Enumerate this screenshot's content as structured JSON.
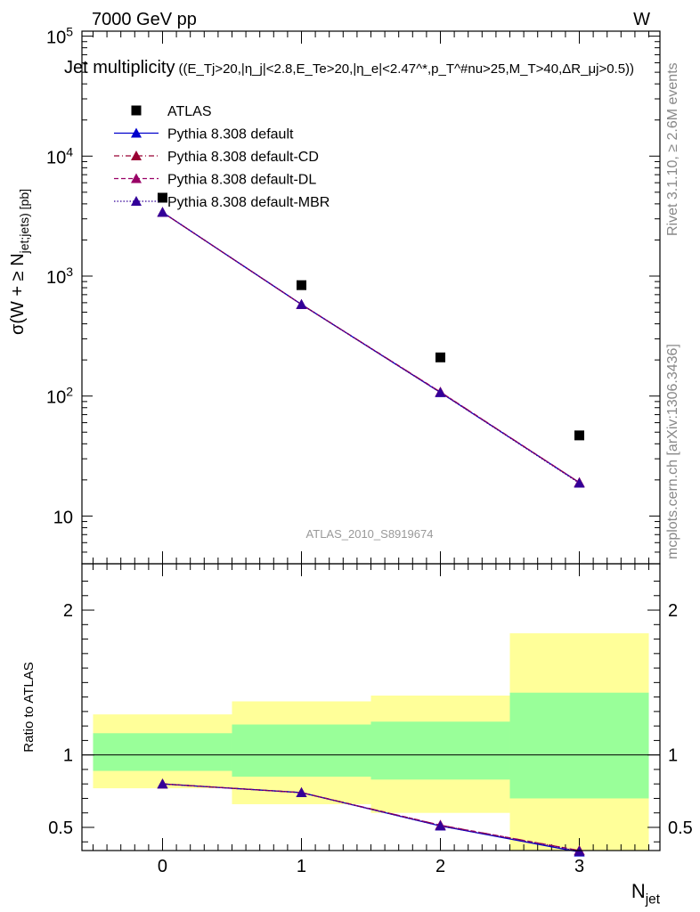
{
  "header": {
    "left": "7000 GeV pp",
    "right": "W"
  },
  "title": {
    "main": "Jet multiplicity",
    "cuts": "((E_Tj>20,|η_j|<2.8,E_Te>20,|η_e|<2.47^*,p_T^#nu>25,M_T>40,ΔR_μj>0.5))"
  },
  "side_labels": {
    "rivet": "Rivet 3.1.10, ≥ 2.6M events",
    "mcplots": "mcplots.cern.ch [arXiv:1306.3436]"
  },
  "analysis_id": "ATLAS_2010_S8919674",
  "colors": {
    "data": "#000000",
    "default": "#0000cc",
    "cd": "#990033",
    "dl": "#990066",
    "mbr": "#330099",
    "band_inner": "#99ff99",
    "band_outer": "#ffff99"
  },
  "chart_data": [
    {
      "type": "line",
      "panel": "main",
      "ylabel": "σ(W + ≥ N_jet;jets) [pb]",
      "yscale": "log",
      "ylim": [
        4,
        110000
      ],
      "xlim": [
        -0.58,
        3.58
      ],
      "y_ticks": [
        {
          "v": 10,
          "label": "10"
        },
        {
          "v": 100,
          "label": "10^2"
        },
        {
          "v": 1000,
          "label": "10^3"
        },
        {
          "v": 10000,
          "label": "10^4"
        },
        {
          "v": 100000,
          "label": "10^5"
        }
      ],
      "x": [
        0,
        1,
        2,
        3
      ],
      "series": [
        {
          "name": "ATLAS",
          "style": "data",
          "values": [
            4500,
            840,
            210,
            47
          ]
        },
        {
          "name": "Pythia 8.308 default",
          "style": "solid",
          "values": [
            3400,
            580,
            107,
            19
          ]
        },
        {
          "name": "Pythia 8.308 default-CD",
          "style": "dashdot",
          "values": [
            3400,
            580,
            108,
            19
          ]
        },
        {
          "name": "Pythia 8.308 default-DL",
          "style": "dashed",
          "values": [
            3400,
            580,
            108,
            19
          ]
        },
        {
          "name": "Pythia 8.308 default-MBR",
          "style": "dotted",
          "values": [
            3400,
            580,
            107,
            18.8
          ]
        }
      ]
    },
    {
      "type": "line",
      "panel": "ratio",
      "ylabel": "Ratio to ATLAS",
      "ylim": [
        0.34,
        2.32
      ],
      "xlim": [
        -0.58,
        3.58
      ],
      "xlabel": "N_jet",
      "x_ticks": [
        "0",
        "1",
        "2",
        "3"
      ],
      "y_ticks": [
        {
          "v": 0.5,
          "label": "0.5"
        },
        {
          "v": 1,
          "label": "1"
        },
        {
          "v": 2,
          "label": "2"
        }
      ],
      "bins": [
        {
          "lo": -0.5,
          "hi": 0.5,
          "inner": [
            0.89,
            1.15
          ],
          "outer": [
            0.77,
            1.28
          ]
        },
        {
          "lo": 0.5,
          "hi": 1.5,
          "inner": [
            0.85,
            1.21
          ],
          "outer": [
            0.66,
            1.37
          ]
        },
        {
          "lo": 1.5,
          "hi": 2.5,
          "inner": [
            0.83,
            1.23
          ],
          "outer": [
            0.6,
            1.41
          ]
        },
        {
          "lo": 2.5,
          "hi": 3.5,
          "inner": [
            0.7,
            1.43
          ],
          "outer": [
            0.34,
            1.84
          ]
        }
      ],
      "x": [
        0,
        1,
        2,
        3
      ],
      "series": [
        {
          "name": "Pythia 8.308 default",
          "style": "solid",
          "values": [
            0.8,
            0.74,
            0.51,
            0.33
          ]
        },
        {
          "name": "Pythia 8.308 default-CD",
          "style": "dashdot",
          "values": [
            0.8,
            0.74,
            0.515,
            0.34
          ]
        },
        {
          "name": "Pythia 8.308 default-DL",
          "style": "dashed",
          "values": [
            0.8,
            0.74,
            0.515,
            0.34
          ]
        },
        {
          "name": "Pythia 8.308 default-MBR",
          "style": "dotted",
          "values": [
            0.8,
            0.74,
            0.51,
            0.335
          ]
        }
      ]
    }
  ]
}
